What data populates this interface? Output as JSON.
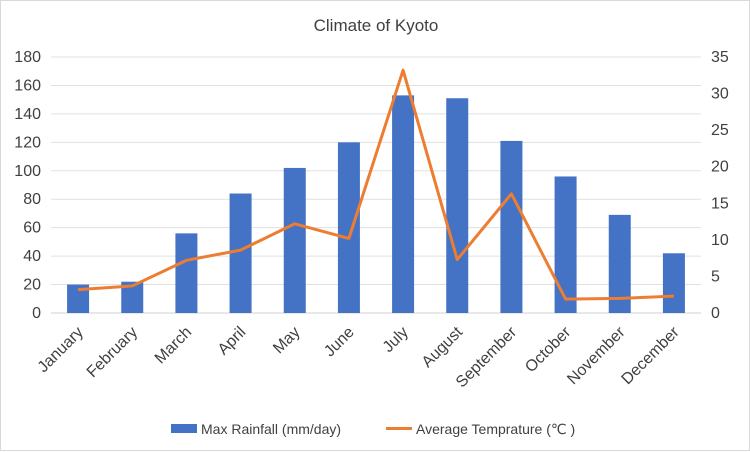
{
  "chart_data": {
    "type": "bar+line",
    "title": "Climate of Kyoto",
    "categories": [
      "January",
      "February",
      "March",
      "April",
      "May",
      "June",
      "July",
      "August",
      "September",
      "October",
      "November",
      "December"
    ],
    "series": [
      {
        "name": "Max Rainfall (mm/day)",
        "type": "bar",
        "axis": "left",
        "color": "#4472c4",
        "values": [
          20,
          22,
          56,
          84,
          102,
          120,
          153,
          151,
          121,
          96,
          69,
          42
        ]
      },
      {
        "name": "Average Temprature (℃ )",
        "type": "line",
        "axis": "right",
        "color": "#ed7d31",
        "values": [
          3.2,
          3.7,
          7.2,
          8.6,
          12.2,
          10.2,
          33.2,
          7.3,
          16.3,
          1.9,
          2.0,
          2.3
        ]
      }
    ],
    "y_left": {
      "min": 0,
      "max": 180,
      "ticks": [
        "0",
        "20",
        "40",
        "60",
        "80",
        "100",
        "120",
        "140",
        "160",
        "180"
      ]
    },
    "y_right": {
      "min": 0,
      "max": 35,
      "ticks": [
        "0",
        "5",
        "10",
        "15",
        "20",
        "25",
        "30",
        "35"
      ]
    },
    "grid": true,
    "legend_position": "bottom"
  }
}
